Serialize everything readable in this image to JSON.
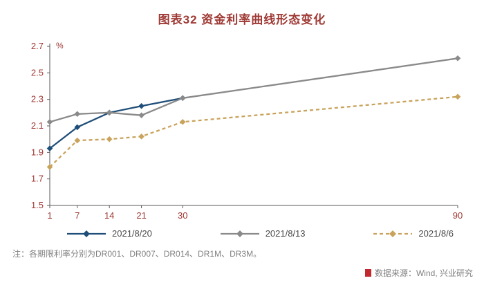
{
  "title": "图表32 资金利率曲线形态变化",
  "note": "注：各期限利率分别为DR001、DR007、DR014、DR1M、DR3M。",
  "source": "数据来源：Wind, 兴业研究",
  "colors": {
    "title": "#9e3934",
    "axis_label": "#9e3934",
    "axis_line": "#595959",
    "note_text": "#808080",
    "logo": "#c2292e"
  },
  "chart_data": {
    "type": "line",
    "title": "图表32 资金利率曲线形态变化",
    "xlabel": "",
    "ylabel": "%",
    "x": [
      1,
      7,
      14,
      21,
      30,
      90
    ],
    "x_tick_labels": [
      "1",
      "7",
      "14",
      "21",
      "30",
      "90"
    ],
    "ylim": [
      1.5,
      2.7
    ],
    "yticks": [
      1.5,
      1.7,
      1.9,
      2.1,
      2.3,
      2.5,
      2.7
    ],
    "grid": false,
    "legend_position": "bottom",
    "series": [
      {
        "name": "2021/8/6",
        "color": "#c9a35c",
        "dash": "5 4",
        "values": [
          1.79,
          1.99,
          2.0,
          2.02,
          2.13,
          2.32
        ]
      },
      {
        "name": "2021/8/20",
        "color": "#1f4e79",
        "dash": "",
        "values": [
          1.93,
          2.09,
          2.2,
          2.25,
          2.31,
          null
        ]
      },
      {
        "name": "2021/8/13",
        "color": "#8a8a8a",
        "dash": "",
        "values": [
          2.13,
          2.19,
          2.2,
          2.18,
          2.31,
          2.61
        ]
      }
    ]
  }
}
